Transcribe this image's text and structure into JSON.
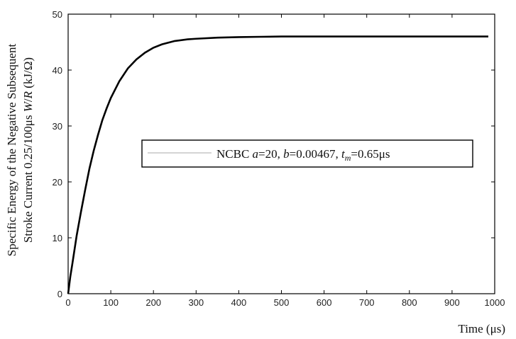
{
  "chart_data": {
    "type": "line",
    "xlabel": "Time (μs)",
    "ylabel_line1": "Specific Energy of the Negative Subsequent",
    "ylabel_line2": "Stroke Current  0.25/100μs  W/R (kJ/Ω)",
    "xlim": [
      0,
      1000
    ],
    "ylim": [
      0,
      50
    ],
    "x_ticks": [
      0,
      100,
      200,
      300,
      400,
      500,
      600,
      700,
      800,
      900,
      1000
    ],
    "y_ticks": [
      0,
      10,
      20,
      30,
      40,
      50
    ],
    "legend_position": "center-right",
    "legend_label": "NCBC a=20, b=0.00467, t_m=0.65μs",
    "line_color": "#000000",
    "series": [
      {
        "name": "NCBC a=20, b=0.00467, t_m=0.65μs",
        "x": [
          0,
          5,
          10,
          20,
          30,
          40,
          50,
          60,
          70,
          80,
          90,
          100,
          120,
          140,
          160,
          180,
          200,
          220,
          250,
          280,
          300,
          350,
          400,
          450,
          500,
          600,
          700,
          800,
          900,
          985
        ],
        "y": [
          0,
          3.0,
          5.4,
          10.4,
          14.6,
          18.6,
          22.4,
          25.6,
          28.4,
          31.0,
          33.1,
          35.0,
          38.0,
          40.3,
          41.9,
          43.1,
          44.0,
          44.6,
          45.2,
          45.5,
          45.6,
          45.8,
          45.9,
          45.95,
          46.0,
          46.0,
          46.0,
          46.0,
          46.0,
          46.0
        ]
      }
    ]
  }
}
